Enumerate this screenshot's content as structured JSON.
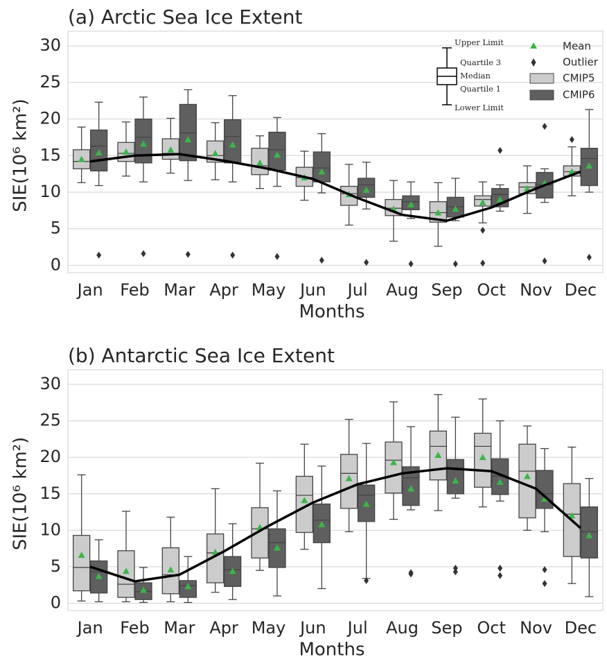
{
  "chart_data": [
    {
      "type": "box",
      "title": "(a) Arctic Sea Ice Extent",
      "xlabel": "Months",
      "ylabel": "SIE(10⁶ km²)",
      "categories": [
        "Jan",
        "Feb",
        "Mar",
        "Apr",
        "May",
        "Jun",
        "Jul",
        "Aug",
        "Sep",
        "Oct",
        "Nov",
        "Dec"
      ],
      "ylim": [
        -1,
        32
      ],
      "yticks": [
        0,
        5,
        10,
        15,
        20,
        25,
        30
      ],
      "grid": true,
      "mean_color": "#3cb54a",
      "outlier_color": "#333333",
      "legend": {
        "mean": "Mean",
        "outlier": "Outlier"
      },
      "box_key": {
        "high": "Upper Limit",
        "q3": "Quartile 3",
        "median": "Median",
        "q1": "Quartile 1",
        "low": "Lower Limit"
      },
      "series": [
        {
          "name": "CMIP5",
          "color": "#cccccc",
          "boxes": [
            {
              "low": 11.3,
              "q1": 13.2,
              "median": 14.2,
              "q3": 15.8,
              "high": 18.9,
              "mean": 14.5,
              "outliers": []
            },
            {
              "low": 12.2,
              "q1": 14.2,
              "median": 15.3,
              "q3": 16.8,
              "high": 19.6,
              "mean": 15.5,
              "outliers": []
            },
            {
              "low": 12.6,
              "q1": 14.5,
              "median": 15.3,
              "q3": 17.3,
              "high": 20.1,
              "mean": 15.8,
              "outliers": []
            },
            {
              "low": 11.7,
              "q1": 14.1,
              "median": 15.0,
              "q3": 17.0,
              "high": 19.5,
              "mean": 15.3,
              "outliers": []
            },
            {
              "low": 10.5,
              "q1": 12.4,
              "median": 13.6,
              "q3": 16.0,
              "high": 17.7,
              "mean": 14.0,
              "outliers": []
            },
            {
              "low": 8.9,
              "q1": 10.8,
              "median": 12.0,
              "q3": 13.4,
              "high": 15.6,
              "mean": 12.0,
              "outliers": []
            },
            {
              "low": 5.5,
              "q1": 8.2,
              "median": 9.8,
              "q3": 10.8,
              "high": 13.8,
              "mean": 9.7,
              "outliers": []
            },
            {
              "low": 3.3,
              "q1": 6.8,
              "median": 7.8,
              "q3": 9.0,
              "high": 11.6,
              "mean": 7.7,
              "outliers": []
            },
            {
              "low": 2.6,
              "q1": 5.9,
              "median": 7.2,
              "q3": 8.7,
              "high": 11.3,
              "mean": 7.2,
              "outliers": []
            },
            {
              "low": 5.8,
              "q1": 8.1,
              "median": 9.0,
              "q3": 9.5,
              "high": 11.4,
              "mean": 8.6,
              "outliers": [
                0.3,
                4.8
              ]
            },
            {
              "low": 7.1,
              "q1": 9.8,
              "median": 10.7,
              "q3": 11.3,
              "high": 13.6,
              "mean": 10.5,
              "outliers": []
            },
            {
              "low": 9.5,
              "q1": 12.2,
              "median": 12.8,
              "q3": 13.6,
              "high": 16.2,
              "mean": 12.8,
              "outliers": [
                17.2
              ]
            }
          ]
        },
        {
          "name": "CMIP6",
          "color": "#5f5f5f",
          "boxes": [
            {
              "low": 10.9,
              "q1": 12.9,
              "median": 16.3,
              "q3": 18.5,
              "high": 22.3,
              "mean": 15.4,
              "outliers": [
                1.4
              ]
            },
            {
              "low": 11.4,
              "q1": 14.0,
              "median": 17.5,
              "q3": 20.0,
              "high": 23.0,
              "mean": 16.6,
              "outliers": [
                1.6
              ]
            },
            {
              "low": 11.6,
              "q1": 14.3,
              "median": 18.1,
              "q3": 22.0,
              "high": 24.0,
              "mean": 17.2,
              "outliers": [
                1.5
              ]
            },
            {
              "low": 11.4,
              "q1": 14.0,
              "median": 17.6,
              "q3": 19.9,
              "high": 23.2,
              "mean": 16.5,
              "outliers": [
                1.4
              ]
            },
            {
              "low": 10.8,
              "q1": 13.0,
              "median": 15.8,
              "q3": 18.2,
              "high": 20.2,
              "mean": 15.1,
              "outliers": [
                1.2
              ]
            },
            {
              "low": 9.9,
              "q1": 11.4,
              "median": 13.3,
              "q3": 15.5,
              "high": 18.0,
              "mean": 12.8,
              "outliers": [
                0.7
              ]
            },
            {
              "low": 7.7,
              "q1": 9.3,
              "median": 11.0,
              "q3": 11.9,
              "high": 14.1,
              "mean": 10.3,
              "outliers": [
                0.4
              ]
            },
            {
              "low": 6.4,
              "q1": 7.6,
              "median": 8.7,
              "q3": 9.5,
              "high": 11.4,
              "mean": 8.3,
              "outliers": [
                0.2
              ]
            },
            {
              "low": 6.1,
              "q1": 6.6,
              "median": 8.0,
              "q3": 9.3,
              "high": 11.9,
              "mean": 7.7,
              "outliers": [
                0.2
              ]
            },
            {
              "low": 7.4,
              "q1": 8.0,
              "median": 9.7,
              "q3": 10.5,
              "high": 11.0,
              "mean": 9.0,
              "outliers": [
                15.7
              ]
            },
            {
              "low": 8.6,
              "q1": 9.2,
              "median": 11.0,
              "q3": 12.7,
              "high": 13.2,
              "mean": 11.2,
              "outliers": [
                0.6,
                19.0
              ]
            },
            {
              "low": 10.0,
              "q1": 10.9,
              "median": 14.6,
              "q3": 16.0,
              "high": 21.3,
              "mean": 13.6,
              "outliers": [
                1.1
              ]
            }
          ]
        }
      ],
      "line": {
        "color": "#000000",
        "values": [
          14.2,
          15.0,
          15.2,
          14.3,
          13.2,
          11.8,
          9.2,
          6.9,
          6.1,
          7.9,
          10.5,
          12.8
        ]
      }
    },
    {
      "type": "box",
      "title": "(b) Antarctic Sea Ice Extent",
      "xlabel": "Months",
      "ylabel": "SIE(10⁶ km²)",
      "categories": [
        "Jan",
        "Feb",
        "Mar",
        "Apr",
        "May",
        "Jun",
        "Jul",
        "Aug",
        "Sep",
        "Oct",
        "Nov",
        "Dec"
      ],
      "ylim": [
        -1,
        32
      ],
      "yticks": [
        0,
        5,
        10,
        15,
        20,
        25,
        30
      ],
      "grid": true,
      "mean_color": "#3cb54a",
      "outlier_color": "#333333",
      "series": [
        {
          "name": "CMIP5",
          "color": "#cccccc",
          "boxes": [
            {
              "low": 0.3,
              "q1": 1.7,
              "median": 4.9,
              "q3": 9.3,
              "high": 17.6,
              "mean": 6.6,
              "outliers": []
            },
            {
              "low": 0.2,
              "q1": 0.8,
              "median": 2.6,
              "q3": 7.2,
              "high": 12.6,
              "mean": 4.4,
              "outliers": []
            },
            {
              "low": 0.2,
              "q1": 1.3,
              "median": 3.9,
              "q3": 7.6,
              "high": 11.8,
              "mean": 4.6,
              "outliers": []
            },
            {
              "low": 1.5,
              "q1": 2.8,
              "median": 6.9,
              "q3": 9.5,
              "high": 15.7,
              "mean": 7.0,
              "outliers": []
            },
            {
              "low": 4.5,
              "q1": 6.2,
              "median": 10.2,
              "q3": 13.1,
              "high": 19.2,
              "mean": 10.4,
              "outliers": []
            },
            {
              "low": 7.4,
              "q1": 9.7,
              "median": 14.8,
              "q3": 17.4,
              "high": 21.8,
              "mean": 14.1,
              "outliers": []
            },
            {
              "low": 9.8,
              "q1": 13.0,
              "median": 17.8,
              "q3": 20.4,
              "high": 25.2,
              "mean": 17.1,
              "outliers": []
            },
            {
              "low": 11.5,
              "q1": 15.1,
              "median": 19.6,
              "q3": 22.1,
              "high": 27.6,
              "mean": 19.3,
              "outliers": []
            },
            {
              "low": 12.7,
              "q1": 16.9,
              "median": 21.5,
              "q3": 23.6,
              "high": 28.6,
              "mean": 20.3,
              "outliers": []
            },
            {
              "low": 13.2,
              "q1": 15.9,
              "median": 21.5,
              "q3": 23.3,
              "high": 28.0,
              "mean": 20.0,
              "outliers": []
            },
            {
              "low": 10.0,
              "q1": 11.7,
              "median": 18.1,
              "q3": 21.8,
              "high": 24.3,
              "mean": 17.4,
              "outliers": []
            },
            {
              "low": 2.7,
              "q1": 6.4,
              "median": 12.2,
              "q3": 16.4,
              "high": 21.4,
              "mean": 12.0,
              "outliers": []
            }
          ]
        },
        {
          "name": "CMIP6",
          "color": "#5f5f5f",
          "boxes": [
            {
              "low": 0.2,
              "q1": 1.4,
              "median": 4.3,
              "q3": 5.8,
              "high": 8.7,
              "mean": 3.7,
              "outliers": []
            },
            {
              "low": 0.1,
              "q1": 0.5,
              "median": 1.6,
              "q3": 2.8,
              "high": 4.9,
              "mean": 1.8,
              "outliers": []
            },
            {
              "low": 0.1,
              "q1": 0.8,
              "median": 2.4,
              "q3": 3.1,
              "high": 6.4,
              "mean": 2.3,
              "outliers": []
            },
            {
              "low": 0.5,
              "q1": 2.3,
              "median": 4.6,
              "q3": 6.4,
              "high": 10.9,
              "mean": 4.4,
              "outliers": []
            },
            {
              "low": 1.0,
              "q1": 4.9,
              "median": 8.3,
              "q3": 10.2,
              "high": 15.4,
              "mean": 7.6,
              "outliers": []
            },
            {
              "low": 2.0,
              "q1": 8.3,
              "median": 11.4,
              "q3": 13.6,
              "high": 18.8,
              "mean": 10.8,
              "outliers": []
            },
            {
              "low": 3.4,
              "q1": 11.2,
              "median": 14.8,
              "q3": 16.2,
              "high": 21.9,
              "mean": 13.6,
              "outliers": [
                3.1
              ]
            },
            {
              "low": 12.8,
              "q1": 13.4,
              "median": 17.2,
              "q3": 18.7,
              "high": 24.2,
              "mean": 15.7,
              "outliers": [
                4.0,
                4.2
              ]
            },
            {
              "low": 14.4,
              "q1": 15.0,
              "median": 18.4,
              "q3": 19.7,
              "high": 25.5,
              "mean": 16.8,
              "outliers": [
                4.3,
                4.8
              ]
            },
            {
              "low": 14.0,
              "q1": 14.9,
              "median": 17.4,
              "q3": 19.8,
              "high": 25.0,
              "mean": 16.6,
              "outliers": [
                3.8,
                4.8
              ]
            },
            {
              "low": 9.8,
              "q1": 13.0,
              "median": 15.0,
              "q3": 18.2,
              "high": 21.2,
              "mean": 14.3,
              "outliers": [
                2.7,
                4.6
              ]
            },
            {
              "low": 0.9,
              "q1": 6.2,
              "median": 9.8,
              "q3": 13.2,
              "high": 17.1,
              "mean": 9.3,
              "outliers": []
            }
          ]
        }
      ],
      "line": {
        "color": "#000000",
        "values": [
          5.0,
          3.0,
          3.9,
          7.1,
          10.6,
          13.8,
          16.3,
          17.8,
          18.5,
          18.1,
          15.7,
          10.3
        ]
      }
    }
  ]
}
